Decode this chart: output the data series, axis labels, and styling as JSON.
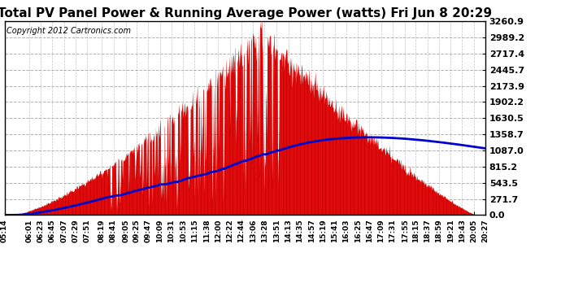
{
  "title": "Total PV Panel Power & Running Average Power (watts) Fri Jun 8 20:29",
  "copyright": "Copyright 2012 Cartronics.com",
  "yticks": [
    0.0,
    271.7,
    543.5,
    815.2,
    1087.0,
    1358.7,
    1630.5,
    1902.2,
    2173.9,
    2445.7,
    2717.4,
    2989.2,
    3260.9
  ],
  "ymax": 3260.9,
  "bg_color": "#ffffff",
  "plot_bg_color": "#ffffff",
  "grid_color": "#aaaaaa",
  "bar_color": "#cc0000",
  "line_color": "#0000cc",
  "title_fontsize": 11,
  "copyright_fontsize": 7,
  "xtick_fontsize": 6.5,
  "ytick_fontsize": 8,
  "xtick_labels": [
    "05:14",
    "06:01",
    "06:23",
    "06:45",
    "07:07",
    "07:29",
    "07:51",
    "08:19",
    "08:41",
    "09:05",
    "09:25",
    "09:47",
    "10:09",
    "10:31",
    "10:53",
    "11:15",
    "11:38",
    "12:00",
    "12:22",
    "12:44",
    "13:06",
    "13:28",
    "13:51",
    "14:13",
    "14:35",
    "14:57",
    "15:19",
    "15:41",
    "16:03",
    "16:25",
    "16:47",
    "17:09",
    "17:31",
    "17:55",
    "18:15",
    "18:37",
    "18:59",
    "19:21",
    "19:43",
    "20:05",
    "20:27"
  ]
}
